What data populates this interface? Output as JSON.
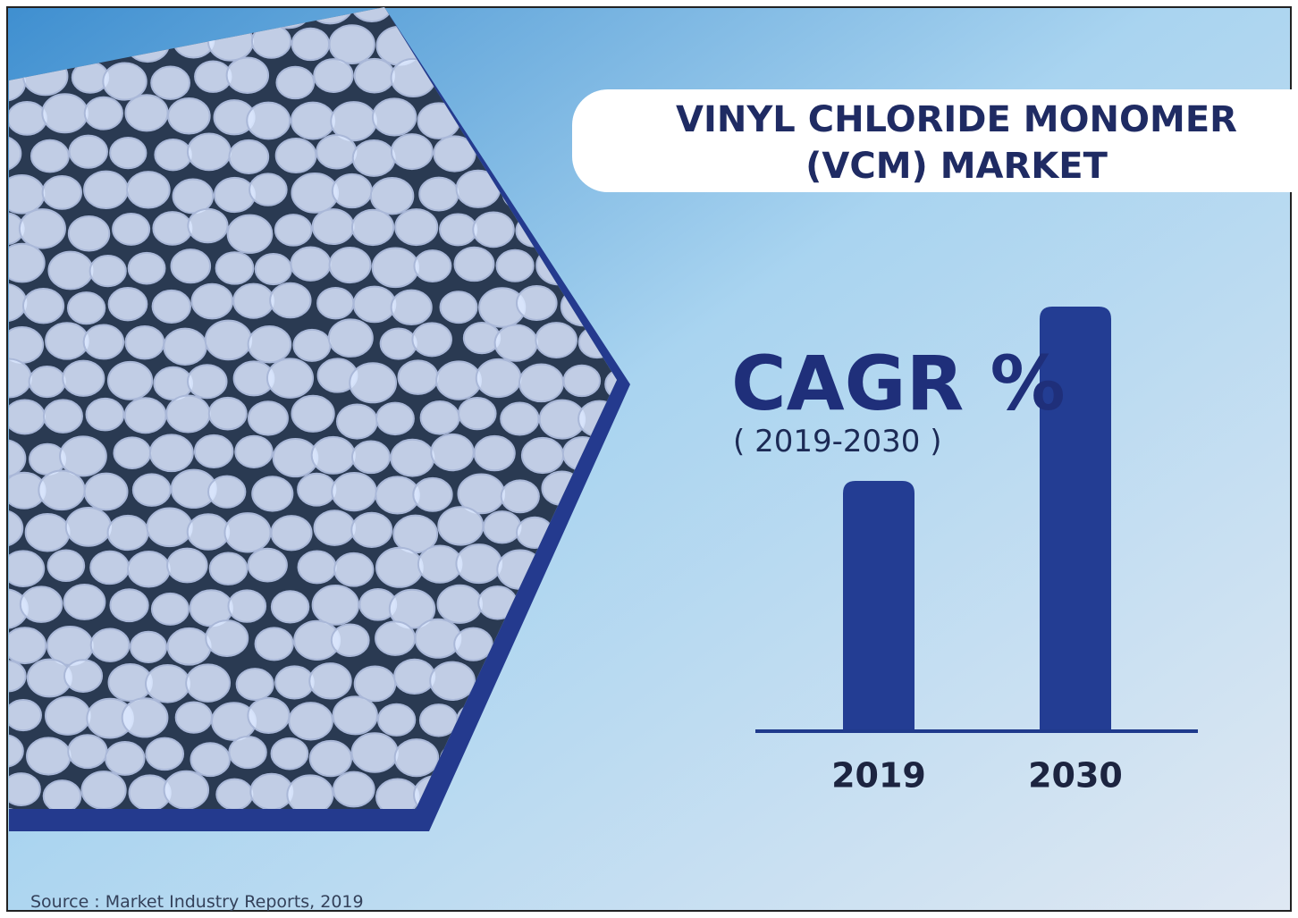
{
  "chart_data": {
    "type": "bar",
    "title": "VINYL CHLORIDE MONOMER (VCM) MARKET",
    "subtitle": "CAGR %",
    "period": "( 2019-2030 )",
    "source": "Source : Market Industry Reports, 2019",
    "categories": [
      "2019",
      "2030"
    ],
    "values": [
      56,
      95
    ],
    "color": "#233d93",
    "ylim": [
      0,
      100
    ]
  }
}
